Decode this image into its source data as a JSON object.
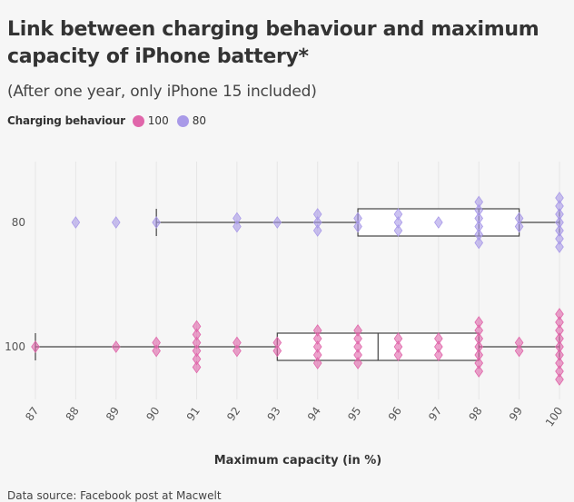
{
  "chart_data": {
    "type": "boxplot",
    "title": "Link between charging behaviour and maximum capacity of iPhone battery*",
    "subtitle": "(After one year, only iPhone 15 included)",
    "legend_title": "Charging behaviour",
    "xlabel": "Maximum capacity (in %)",
    "x_ticks": [
      87,
      88,
      89,
      90,
      91,
      92,
      93,
      94,
      95,
      96,
      97,
      98,
      99,
      100
    ],
    "xlim": [
      87,
      100
    ],
    "grid": true,
    "legend_position": "top-left",
    "categories": [
      "80",
      "100"
    ],
    "series": [
      {
        "name": "80",
        "color": "#a99ae8",
        "box": {
          "whisker_low": 90,
          "q1": 95,
          "median": 98,
          "q3": 99,
          "whisker_high": 100
        },
        "points": [
          {
            "x": 88,
            "count": 1
          },
          {
            "x": 89,
            "count": 1
          },
          {
            "x": 90,
            "count": 1
          },
          {
            "x": 92,
            "count": 2
          },
          {
            "x": 93,
            "count": 1
          },
          {
            "x": 94,
            "count": 3
          },
          {
            "x": 95,
            "count": 2
          },
          {
            "x": 96,
            "count": 3
          },
          {
            "x": 97,
            "count": 1
          },
          {
            "x": 98,
            "count": 6
          },
          {
            "x": 99,
            "count": 2
          },
          {
            "x": 100,
            "count": 7
          }
        ]
      },
      {
        "name": "100",
        "color": "#e066aa",
        "box": {
          "whisker_low": 87,
          "q1": 93,
          "median": 95.5,
          "q3": 98,
          "whisker_high": 100
        },
        "points": [
          {
            "x": 87,
            "count": 1
          },
          {
            "x": 89,
            "count": 1
          },
          {
            "x": 90,
            "count": 2
          },
          {
            "x": 91,
            "count": 6
          },
          {
            "x": 92,
            "count": 2
          },
          {
            "x": 93,
            "count": 2
          },
          {
            "x": 94,
            "count": 5
          },
          {
            "x": 95,
            "count": 5
          },
          {
            "x": 96,
            "count": 3
          },
          {
            "x": 97,
            "count": 3
          },
          {
            "x": 98,
            "count": 7
          },
          {
            "x": 99,
            "count": 2
          },
          {
            "x": 100,
            "count": 9
          }
        ]
      }
    ]
  },
  "source": "Data source: Facebook post at Macwelt"
}
